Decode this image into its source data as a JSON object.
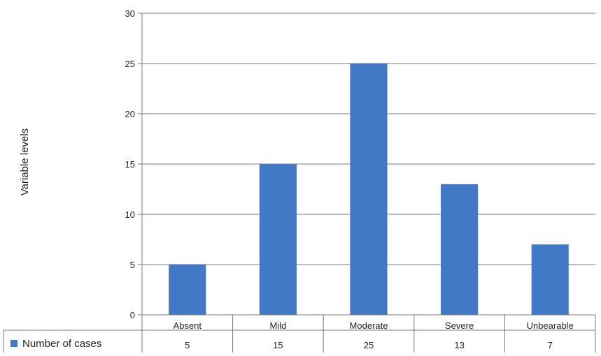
{
  "chart_data": {
    "type": "bar",
    "title": "",
    "xlabel": "",
    "ylabel": "Variable levels",
    "categories": [
      "Absent",
      "Mild",
      "Moderate",
      "Severe",
      "Unbearable"
    ],
    "series": [
      {
        "name": "Number of cases",
        "values": [
          5,
          15,
          25,
          13,
          7
        ],
        "color": "#4179c6"
      }
    ],
    "ylim": [
      0,
      30
    ],
    "yticks": [
      0,
      5,
      10,
      15,
      20,
      25,
      30
    ],
    "grid": true,
    "legend": "data-table-left",
    "data_table": true
  }
}
